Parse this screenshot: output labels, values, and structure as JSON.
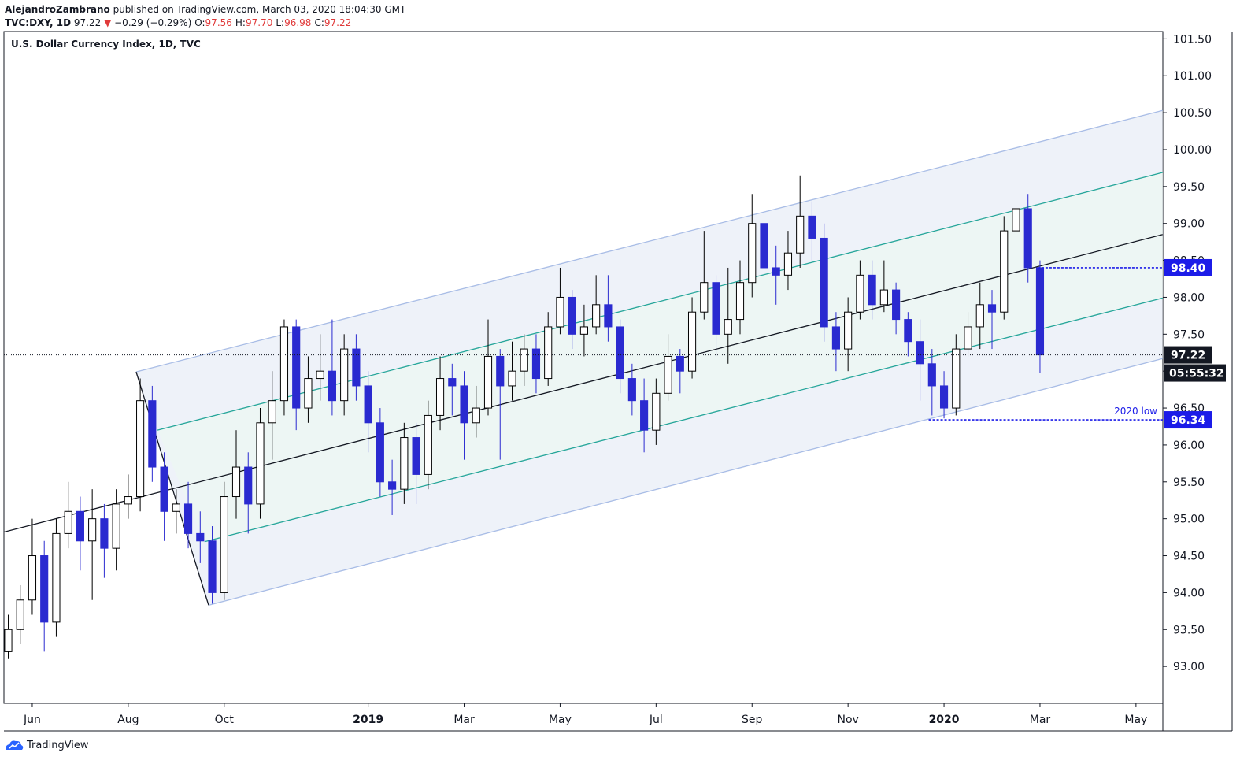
{
  "header": {
    "author": "AlejandroZambrano",
    "published": "published on TradingView.com, March 03, 2020 18:04:30 GMT",
    "symbol": "TVC:DXY, 1D",
    "last": "97.22",
    "arrow": "▼",
    "change": "−0.29 (−0.29%)",
    "ohlc": [
      {
        "label": "O:",
        "value": "97.56"
      },
      {
        "label": "H:",
        "value": "97.70"
      },
      {
        "label": "L:",
        "value": "96.98"
      },
      {
        "label": "C:",
        "value": "97.22"
      }
    ]
  },
  "chart_data": {
    "type": "candlestick",
    "title": "U.S. Dollar Currency Index, 1D, TVC",
    "x": [
      -0.5,
      -0.25,
      0,
      0.25,
      0.5,
      0.75,
      1,
      1.25,
      1.5,
      1.75,
      2,
      2.25,
      2.5,
      2.75,
      3,
      3.25,
      3.5,
      3.75,
      4,
      4.25,
      4.5,
      4.75,
      5,
      5.25,
      5.5,
      5.75,
      6,
      6.25,
      6.5,
      6.75,
      7,
      7.25,
      7.5,
      7.75,
      8,
      8.25,
      8.5,
      8.75,
      9,
      9.25,
      9.5,
      9.75,
      10,
      10.25,
      10.5,
      10.75,
      11,
      11.25,
      11.5,
      11.75,
      12,
      12.25,
      12.5,
      12.75,
      13,
      13.25,
      13.5,
      13.75,
      14,
      14.25,
      14.5,
      14.75,
      15,
      15.25,
      15.5,
      15.75,
      16,
      16.25,
      16.5,
      16.75,
      17,
      17.25,
      17.5,
      17.75,
      18,
      18.25,
      18.5,
      18.75,
      19,
      19.25,
      19.5,
      19.75,
      20,
      20.25,
      20.5,
      20.75,
      21
    ],
    "open": [
      93.2,
      93.5,
      93.9,
      94.5,
      93.6,
      94.8,
      95.1,
      94.7,
      95.0,
      94.6,
      95.2,
      95.3,
      96.6,
      95.7,
      95.1,
      95.2,
      94.8,
      94.7,
      94.0,
      95.3,
      95.7,
      95.2,
      96.3,
      96.6,
      97.6,
      96.5,
      96.9,
      97.0,
      96.6,
      97.3,
      96.8,
      96.3,
      95.5,
      95.4,
      96.1,
      95.6,
      96.4,
      96.9,
      96.8,
      96.3,
      96.5,
      97.2,
      96.8,
      97.0,
      97.3,
      96.9,
      97.6,
      98.0,
      97.5,
      97.6,
      97.9,
      97.6,
      96.9,
      96.6,
      96.2,
      96.7,
      97.2,
      97.0,
      97.8,
      98.2,
      97.5,
      97.7,
      98.2,
      99.0,
      98.4,
      98.3,
      98.6,
      99.1,
      98.8,
      97.6,
      97.3,
      97.8,
      98.3,
      97.9,
      98.1,
      97.7,
      97.4,
      97.1,
      96.8,
      96.5,
      97.3,
      97.6,
      97.9,
      97.8,
      98.9,
      99.2,
      98.4
    ],
    "high": [
      93.7,
      94.1,
      95.0,
      94.7,
      95.0,
      95.5,
      95.3,
      95.4,
      95.2,
      95.4,
      95.6,
      96.9,
      96.8,
      95.9,
      95.4,
      95.5,
      95.1,
      94.9,
      95.5,
      96.2,
      95.9,
      96.5,
      97.0,
      97.7,
      97.7,
      97.2,
      97.5,
      97.7,
      97.5,
      97.5,
      97.0,
      96.5,
      95.8,
      96.3,
      96.3,
      96.6,
      97.2,
      97.1,
      97.0,
      96.8,
      97.7,
      97.3,
      97.4,
      97.5,
      97.5,
      97.8,
      98.4,
      98.1,
      97.9,
      98.3,
      98.3,
      97.7,
      97.1,
      96.9,
      96.9,
      97.5,
      97.3,
      98.0,
      98.9,
      98.3,
      98.4,
      98.5,
      99.4,
      99.1,
      98.7,
      98.9,
      99.65,
      99.3,
      99.0,
      97.8,
      98.0,
      98.5,
      98.5,
      98.5,
      98.2,
      97.8,
      97.7,
      97.3,
      97.0,
      97.5,
      97.8,
      98.2,
      98.1,
      99.1,
      99.9,
      99.4,
      98.5
    ],
    "low": [
      93.1,
      93.3,
      93.7,
      93.2,
      93.4,
      94.6,
      94.3,
      93.9,
      94.2,
      94.3,
      95.0,
      95.1,
      95.5,
      94.7,
      94.8,
      94.6,
      94.4,
      93.85,
      93.9,
      95.0,
      94.8,
      95.0,
      95.8,
      96.4,
      96.2,
      96.3,
      96.6,
      96.4,
      96.4,
      96.6,
      95.9,
      95.3,
      95.05,
      95.2,
      95.2,
      95.4,
      96.2,
      96.4,
      95.8,
      96.1,
      96.4,
      95.8,
      96.6,
      96.8,
      96.7,
      96.8,
      97.5,
      97.3,
      97.2,
      97.5,
      97.4,
      96.7,
      96.4,
      95.9,
      96.0,
      96.6,
      96.7,
      96.9,
      97.7,
      97.2,
      97.1,
      97.5,
      98.0,
      98.1,
      97.9,
      98.1,
      98.4,
      98.5,
      97.4,
      97.0,
      97.0,
      97.7,
      97.7,
      97.8,
      97.5,
      97.2,
      96.6,
      96.4,
      96.36,
      96.4,
      97.2,
      97.3,
      97.3,
      97.7,
      98.8,
      98.2,
      96.98
    ],
    "close": [
      93.5,
      93.9,
      94.5,
      93.6,
      94.8,
      95.1,
      94.7,
      95.0,
      94.6,
      95.2,
      95.3,
      96.6,
      95.7,
      95.1,
      95.2,
      94.8,
      94.7,
      94.0,
      95.3,
      95.7,
      95.2,
      96.3,
      96.6,
      97.6,
      96.5,
      96.9,
      97.0,
      96.6,
      97.3,
      96.8,
      96.3,
      95.5,
      95.4,
      96.1,
      95.6,
      96.4,
      96.9,
      96.8,
      96.3,
      96.5,
      97.2,
      96.8,
      97.0,
      97.3,
      96.9,
      97.6,
      98.0,
      97.5,
      97.6,
      97.9,
      97.6,
      96.9,
      96.6,
      96.2,
      96.7,
      97.2,
      97.0,
      97.8,
      98.2,
      97.5,
      97.7,
      98.2,
      99.0,
      98.4,
      98.3,
      98.6,
      99.1,
      98.8,
      97.6,
      97.3,
      97.8,
      98.3,
      97.9,
      98.1,
      97.7,
      97.4,
      97.1,
      96.8,
      96.5,
      97.3,
      97.6,
      97.9,
      97.8,
      98.9,
      99.2,
      98.4,
      97.22
    ],
    "up_color": "#ffffff",
    "up_border": "#000000",
    "down_color": "#2a2ad0",
    "xlim": [
      -0.59,
      23.56
    ],
    "xticks": [
      {
        "value": 0,
        "label": "Jun"
      },
      {
        "value": 2,
        "label": "Aug"
      },
      {
        "value": 4,
        "label": "Oct"
      },
      {
        "value": 7,
        "label": "2019"
      },
      {
        "value": 9,
        "label": "Mar"
      },
      {
        "value": 11,
        "label": "May"
      },
      {
        "value": 13,
        "label": "Jul"
      },
      {
        "value": 15,
        "label": "Sep"
      },
      {
        "value": 17,
        "label": "Nov"
      },
      {
        "value": 19,
        "label": "2020"
      },
      {
        "value": 21,
        "label": "Mar"
      },
      {
        "value": 23,
        "label": "May"
      }
    ],
    "ylim": [
      92.5,
      101.6
    ],
    "yticks": [
      {
        "value": 93,
        "label": "93.00"
      },
      {
        "value": 93.5,
        "label": "93.50"
      },
      {
        "value": 94,
        "label": "94.00"
      },
      {
        "value": 94.5,
        "label": "94.50"
      },
      {
        "value": 95,
        "label": "95.00"
      },
      {
        "value": 95.5,
        "label": "95.50"
      },
      {
        "value": 96,
        "label": "96.00"
      },
      {
        "value": 96.5,
        "label": "96.50"
      },
      {
        "value": 97,
        "label": "97.00"
      },
      {
        "value": 97.5,
        "label": "97.50"
      },
      {
        "value": 98,
        "label": "98.00"
      },
      {
        "value": 98.5,
        "label": "98.50"
      },
      {
        "value": 99,
        "label": "99.00"
      },
      {
        "value": 99.5,
        "label": "99.50"
      },
      {
        "value": 100,
        "label": "100.00"
      },
      {
        "value": 100.5,
        "label": "100.50"
      },
      {
        "value": 101,
        "label": "101.00"
      },
      {
        "value": 101.5,
        "label": "101.50"
      }
    ],
    "channel_fill": "#eef2f9",
    "inner_fill": "#edf6f4",
    "trendlines": [
      {
        "x": [
          2.165,
          23.556
        ],
        "y": [
          96.99,
          100.53
        ],
        "color": "#a9bde6"
      },
      {
        "x": [
          3.675,
          23.556
        ],
        "y": [
          93.83,
          97.17
        ],
        "color": "#a9bde6"
      },
      {
        "x": [
          -0.59,
          23.556
        ],
        "y": [
          94.82,
          98.85
        ],
        "color": "#131722"
      },
      {
        "x": [
          2.61,
          23.556
        ],
        "y": [
          96.2,
          99.69
        ],
        "color": "#26a69a"
      },
      {
        "x": [
          3.59,
          23.556
        ],
        "y": [
          94.69,
          97.99
        ],
        "color": "#26a69a"
      },
      {
        "x": [
          2.165,
          3.675
        ],
        "y": [
          96.99,
          93.83
        ],
        "color": "#131722"
      }
    ],
    "hlines": [
      {
        "value": 98.4,
        "label": "98.40",
        "x": 20.95,
        "color": "#1c1ce8"
      },
      {
        "value": 96.34,
        "label": "96.34",
        "x": 18.68,
        "color": "#1c1ce8",
        "annotation": "2020 low"
      }
    ],
    "last_price": {
      "value": 97.22,
      "label": "97.22"
    },
    "countdown": "05:55:32"
  },
  "footer": {
    "brand": "TradingView"
  }
}
